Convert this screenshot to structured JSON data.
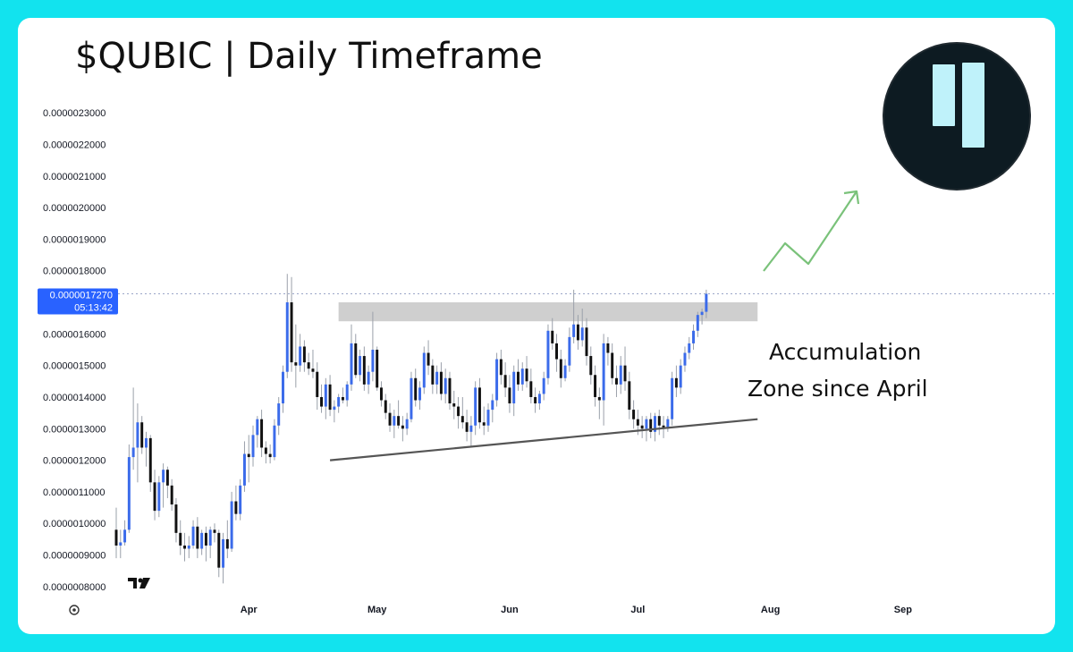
{
  "title": "$QUBIC | Daily Timeframe",
  "annotation": {
    "line1": "Accumulation",
    "line2": "Zone since April"
  },
  "price_tag": {
    "price": "0.0000017270",
    "countdown": "05:13:42"
  },
  "watermark": "TV",
  "settings_icon": "gear-icon",
  "logo_icon": "qubic-logo",
  "colors": {
    "page_bg": "#12e3ee",
    "card_bg": "#ffffff",
    "up": "#3b6bea",
    "down": "#111111",
    "wick": "#9aa0aa",
    "resistance_zone": "#cfcfcf",
    "support_line": "#555555",
    "arrow": "#7ac27a",
    "price_tag": "#2962ff",
    "logo_bg": "#0d1b22",
    "logo_bars": "#bff2fa"
  },
  "chart_data": {
    "type": "candlestick",
    "title": "$QUBIC | Daily Timeframe",
    "y_ticks": [
      "0.0000023000",
      "0.0000022000",
      "0.0000021000",
      "0.0000020000",
      "0.0000019000",
      "0.0000018000",
      "0.0000017000",
      "0.0000016000",
      "0.0000015000",
      "0.0000014000",
      "0.0000013000",
      "0.0000012000",
      "0.0000011000",
      "0.0000010000",
      "0.0000009000",
      "0.0000008000"
    ],
    "y_range": [
      7.6e-07,
      2.34e-06
    ],
    "x_labels": [
      "Apr",
      "May",
      "Jun",
      "Jul",
      "Aug",
      "Sep"
    ],
    "x_label_dates": [
      "2024-04-01",
      "2024-05-01",
      "2024-06-01",
      "2024-07-01",
      "2024-08-01",
      "2024-09-01"
    ],
    "x_range": [
      "2024-03-01",
      "2024-09-14"
    ],
    "last_price": 1.727e-06,
    "resistance_zone": {
      "low": 1.64e-06,
      "high": 1.7e-06,
      "from": "2024-04-22",
      "to": "2024-07-29"
    },
    "support_line": {
      "from_date": "2024-04-20",
      "from_value": 1.2e-06,
      "to_date": "2024-07-29",
      "to_value": 1.33e-06
    },
    "candles": [
      [
        "2024-03-01",
        9.8e-07,
        1.05e-06,
        8.9e-07,
        9.3e-07
      ],
      [
        "2024-03-02",
        9.3e-07,
        9.8e-07,
        8.9e-07,
        9.4e-07
      ],
      [
        "2024-03-03",
        9.4e-07,
        1.01e-06,
        9.3e-07,
        9.8e-07
      ],
      [
        "2024-03-04",
        9.8e-07,
        1.25e-06,
        9.7e-07,
        1.21e-06
      ],
      [
        "2024-03-05",
        1.21e-06,
        1.43e-06,
        1.17e-06,
        1.24e-06
      ],
      [
        "2024-03-06",
        1.24e-06,
        1.38e-06,
        1.13e-06,
        1.32e-06
      ],
      [
        "2024-03-07",
        1.32e-06,
        1.34e-06,
        1.22e-06,
        1.24e-06
      ],
      [
        "2024-03-08",
        1.24e-06,
        1.29e-06,
        1.18e-06,
        1.27e-06
      ],
      [
        "2024-03-09",
        1.27e-06,
        1.28e-06,
        1.1e-06,
        1.13e-06
      ],
      [
        "2024-03-10",
        1.13e-06,
        1.17e-06,
        1.01e-06,
        1.04e-06
      ],
      [
        "2024-03-11",
        1.04e-06,
        1.15e-06,
        1.02e-06,
        1.13e-06
      ],
      [
        "2024-03-12",
        1.13e-06,
        1.19e-06,
        1.05e-06,
        1.17e-06
      ],
      [
        "2024-03-13",
        1.17e-06,
        1.18e-06,
        1.08e-06,
        1.12e-06
      ],
      [
        "2024-03-14",
        1.12e-06,
        1.14e-06,
        1.04e-06,
        1.06e-06
      ],
      [
        "2024-03-15",
        1.06e-06,
        1.08e-06,
        9.4e-07,
        9.7e-07
      ],
      [
        "2024-03-16",
        9.7e-07,
        1.01e-06,
        9e-07,
        9.3e-07
      ],
      [
        "2024-03-17",
        9.3e-07,
        9.7e-07,
        8.8e-07,
        9.2e-07
      ],
      [
        "2024-03-18",
        9.2e-07,
        9.6e-07,
        8.9e-07,
        9.3e-07
      ],
      [
        "2024-03-19",
        9.3e-07,
        1.01e-06,
        9.2e-07,
        9.9e-07
      ],
      [
        "2024-03-20",
        9.9e-07,
        1.02e-06,
        8.9e-07,
        9.2e-07
      ],
      [
        "2024-03-21",
        9.2e-07,
        9.8e-07,
        9e-07,
        9.7e-07
      ],
      [
        "2024-03-22",
        9.7e-07,
        9.9e-07,
        8.8e-07,
        9.3e-07
      ],
      [
        "2024-03-23",
        9.3e-07,
        9.9e-07,
        8.9e-07,
        9.8e-07
      ],
      [
        "2024-03-24",
        9.8e-07,
        1e-06,
        9.4e-07,
        9.7e-07
      ],
      [
        "2024-03-25",
        9.7e-07,
        9.8e-07,
        8.3e-07,
        8.6e-07
      ],
      [
        "2024-03-26",
        8.6e-07,
        9.7e-07,
        8.1e-07,
        9.5e-07
      ],
      [
        "2024-03-27",
        9.5e-07,
        1.01e-06,
        8.9e-07,
        9.2e-07
      ],
      [
        "2024-03-28",
        9.2e-07,
        1.1e-06,
        9.1e-07,
        1.07e-06
      ],
      [
        "2024-03-29",
        1.07e-06,
        1.12e-06,
        1.01e-06,
        1.03e-06
      ],
      [
        "2024-03-30",
        1.03e-06,
        1.14e-06,
        1.01e-06,
        1.12e-06
      ],
      [
        "2024-03-31",
        1.12e-06,
        1.26e-06,
        1.1e-06,
        1.22e-06
      ],
      [
        "2024-04-01",
        1.22e-06,
        1.28e-06,
        1.13e-06,
        1.21e-06
      ],
      [
        "2024-04-02",
        1.21e-06,
        1.31e-06,
        1.18e-06,
        1.28e-06
      ],
      [
        "2024-04-03",
        1.28e-06,
        1.34e-06,
        1.24e-06,
        1.33e-06
      ],
      [
        "2024-04-04",
        1.33e-06,
        1.36e-06,
        1.21e-06,
        1.24e-06
      ],
      [
        "2024-04-05",
        1.24e-06,
        1.26e-06,
        1.19e-06,
        1.22e-06
      ],
      [
        "2024-04-06",
        1.22e-06,
        1.25e-06,
        1.19e-06,
        1.21e-06
      ],
      [
        "2024-04-07",
        1.21e-06,
        1.33e-06,
        1.2e-06,
        1.31e-06
      ],
      [
        "2024-04-08",
        1.31e-06,
        1.4e-06,
        1.28e-06,
        1.38e-06
      ],
      [
        "2024-04-09",
        1.38e-06,
        1.5e-06,
        1.35e-06,
        1.48e-06
      ],
      [
        "2024-04-10",
        1.48e-06,
        1.79e-06,
        1.46e-06,
        1.7e-06
      ],
      [
        "2024-04-11",
        1.7e-06,
        1.78e-06,
        1.48e-06,
        1.51e-06
      ],
      [
        "2024-04-12",
        1.51e-06,
        1.63e-06,
        1.43e-06,
        1.5e-06
      ],
      [
        "2024-04-13",
        1.5e-06,
        1.6e-06,
        1.48e-06,
        1.56e-06
      ],
      [
        "2024-04-14",
        1.56e-06,
        1.58e-06,
        1.48e-06,
        1.51e-06
      ],
      [
        "2024-04-15",
        1.51e-06,
        1.54e-06,
        1.47e-06,
        1.49e-06
      ],
      [
        "2024-04-16",
        1.49e-06,
        1.55e-06,
        1.46e-06,
        1.48e-06
      ],
      [
        "2024-04-17",
        1.48e-06,
        1.51e-06,
        1.36e-06,
        1.4e-06
      ],
      [
        "2024-04-18",
        1.4e-06,
        1.44e-06,
        1.35e-06,
        1.37e-06
      ],
      [
        "2024-04-19",
        1.37e-06,
        1.46e-06,
        1.33e-06,
        1.44e-06
      ],
      [
        "2024-04-20",
        1.44e-06,
        1.47e-06,
        1.34e-06,
        1.36e-06
      ],
      [
        "2024-04-21",
        1.36e-06,
        1.39e-06,
        1.32e-06,
        1.37e-06
      ],
      [
        "2024-04-22",
        1.37e-06,
        1.41e-06,
        1.35e-06,
        1.4e-06
      ],
      [
        "2024-04-23",
        1.4e-06,
        1.43e-06,
        1.38e-06,
        1.39e-06
      ],
      [
        "2024-04-24",
        1.39e-06,
        1.45e-06,
        1.37e-06,
        1.44e-06
      ],
      [
        "2024-04-25",
        1.44e-06,
        1.63e-06,
        1.42e-06,
        1.57e-06
      ],
      [
        "2024-04-26",
        1.57e-06,
        1.6e-06,
        1.46e-06,
        1.47e-06
      ],
      [
        "2024-04-27",
        1.47e-06,
        1.55e-06,
        1.45e-06,
        1.53e-06
      ],
      [
        "2024-04-28",
        1.53e-06,
        1.56e-06,
        1.42e-06,
        1.44e-06
      ],
      [
        "2024-04-29",
        1.44e-06,
        1.5e-06,
        1.41e-06,
        1.48e-06
      ],
      [
        "2024-04-30",
        1.48e-06,
        1.67e-06,
        1.45e-06,
        1.55e-06
      ],
      [
        "2024-05-01",
        1.55e-06,
        1.56e-06,
        1.42e-06,
        1.43e-06
      ],
      [
        "2024-05-02",
        1.43e-06,
        1.45e-06,
        1.37e-06,
        1.39e-06
      ],
      [
        "2024-05-03",
        1.39e-06,
        1.41e-06,
        1.33e-06,
        1.35e-06
      ],
      [
        "2024-05-04",
        1.35e-06,
        1.38e-06,
        1.29e-06,
        1.31e-06
      ],
      [
        "2024-05-05",
        1.31e-06,
        1.36e-06,
        1.27e-06,
        1.34e-06
      ],
      [
        "2024-05-06",
        1.34e-06,
        1.39e-06,
        1.3e-06,
        1.31e-06
      ],
      [
        "2024-05-07",
        1.31e-06,
        1.34e-06,
        1.26e-06,
        1.3e-06
      ],
      [
        "2024-05-08",
        1.3e-06,
        1.35e-06,
        1.28e-06,
        1.33e-06
      ],
      [
        "2024-05-09",
        1.33e-06,
        1.48e-06,
        1.32e-06,
        1.46e-06
      ],
      [
        "2024-05-10",
        1.46e-06,
        1.49e-06,
        1.37e-06,
        1.39e-06
      ],
      [
        "2024-05-11",
        1.39e-06,
        1.45e-06,
        1.36e-06,
        1.43e-06
      ],
      [
        "2024-05-12",
        1.43e-06,
        1.56e-06,
        1.41e-06,
        1.54e-06
      ],
      [
        "2024-05-13",
        1.54e-06,
        1.58e-06,
        1.47e-06,
        1.5e-06
      ],
      [
        "2024-05-14",
        1.5e-06,
        1.52e-06,
        1.41e-06,
        1.44e-06
      ],
      [
        "2024-05-15",
        1.44e-06,
        1.5e-06,
        1.41e-06,
        1.48e-06
      ],
      [
        "2024-05-16",
        1.48e-06,
        1.51e-06,
        1.39e-06,
        1.41e-06
      ],
      [
        "2024-05-17",
        1.41e-06,
        1.49e-06,
        1.38e-06,
        1.46e-06
      ],
      [
        "2024-05-18",
        1.46e-06,
        1.48e-06,
        1.36e-06,
        1.38e-06
      ],
      [
        "2024-05-19",
        1.38e-06,
        1.42e-06,
        1.33e-06,
        1.37e-06
      ],
      [
        "2024-05-20",
        1.37e-06,
        1.4e-06,
        1.3e-06,
        1.34e-06
      ],
      [
        "2024-05-21",
        1.34e-06,
        1.4e-06,
        1.3e-06,
        1.32e-06
      ],
      [
        "2024-05-22",
        1.32e-06,
        1.36e-06,
        1.26e-06,
        1.29e-06
      ],
      [
        "2024-05-23",
        1.29e-06,
        1.34e-06,
        1.24e-06,
        1.31e-06
      ],
      [
        "2024-05-24",
        1.31e-06,
        1.45e-06,
        1.28e-06,
        1.43e-06
      ],
      [
        "2024-05-25",
        1.43e-06,
        1.46e-06,
        1.3e-06,
        1.32e-06
      ],
      [
        "2024-05-26",
        1.32e-06,
        1.37e-06,
        1.28e-06,
        1.31e-06
      ],
      [
        "2024-05-27",
        1.31e-06,
        1.38e-06,
        1.29e-06,
        1.36e-06
      ],
      [
        "2024-05-28",
        1.36e-06,
        1.41e-06,
        1.32e-06,
        1.39e-06
      ],
      [
        "2024-05-29",
        1.39e-06,
        1.54e-06,
        1.37e-06,
        1.52e-06
      ],
      [
        "2024-05-30",
        1.52e-06,
        1.55e-06,
        1.44e-06,
        1.47e-06
      ],
      [
        "2024-05-31",
        1.47e-06,
        1.51e-06,
        1.4e-06,
        1.43e-06
      ],
      [
        "2024-06-01",
        1.43e-06,
        1.47e-06,
        1.35e-06,
        1.38e-06
      ],
      [
        "2024-06-02",
        1.38e-06,
        1.5e-06,
        1.34e-06,
        1.48e-06
      ],
      [
        "2024-06-03",
        1.48e-06,
        1.52e-06,
        1.42e-06,
        1.44e-06
      ],
      [
        "2024-06-04",
        1.44e-06,
        1.51e-06,
        1.42e-06,
        1.49e-06
      ],
      [
        "2024-06-05",
        1.49e-06,
        1.53e-06,
        1.43e-06,
        1.45e-06
      ],
      [
        "2024-06-06",
        1.45e-06,
        1.49e-06,
        1.38e-06,
        1.4e-06
      ],
      [
        "2024-06-07",
        1.4e-06,
        1.43e-06,
        1.35e-06,
        1.38e-06
      ],
      [
        "2024-06-08",
        1.38e-06,
        1.42e-06,
        1.36e-06,
        1.41e-06
      ],
      [
        "2024-06-09",
        1.41e-06,
        1.48e-06,
        1.39e-06,
        1.46e-06
      ],
      [
        "2024-06-10",
        1.46e-06,
        1.63e-06,
        1.44e-06,
        1.61e-06
      ],
      [
        "2024-06-11",
        1.61e-06,
        1.65e-06,
        1.55e-06,
        1.57e-06
      ],
      [
        "2024-06-12",
        1.57e-06,
        1.6e-06,
        1.48e-06,
        1.52e-06
      ],
      [
        "2024-06-13",
        1.52e-06,
        1.55e-06,
        1.43e-06,
        1.46e-06
      ],
      [
        "2024-06-14",
        1.46e-06,
        1.52e-06,
        1.45e-06,
        1.5e-06
      ],
      [
        "2024-06-15",
        1.5e-06,
        1.62e-06,
        1.48e-06,
        1.59e-06
      ],
      [
        "2024-06-16",
        1.59e-06,
        1.74e-06,
        1.57e-06,
        1.63e-06
      ],
      [
        "2024-06-17",
        1.63e-06,
        1.66e-06,
        1.55e-06,
        1.58e-06
      ],
      [
        "2024-06-18",
        1.58e-06,
        1.68e-06,
        1.56e-06,
        1.62e-06
      ],
      [
        "2024-06-19",
        1.62e-06,
        1.65e-06,
        1.5e-06,
        1.53e-06
      ],
      [
        "2024-06-20",
        1.53e-06,
        1.56e-06,
        1.44e-06,
        1.47e-06
      ],
      [
        "2024-06-21",
        1.47e-06,
        1.5e-06,
        1.37e-06,
        1.4e-06
      ],
      [
        "2024-06-22",
        1.4e-06,
        1.43e-06,
        1.33e-06,
        1.39e-06
      ],
      [
        "2024-06-23",
        1.39e-06,
        1.6e-06,
        1.31e-06,
        1.57e-06
      ],
      [
        "2024-06-24",
        1.57e-06,
        1.59e-06,
        1.5e-06,
        1.54e-06
      ],
      [
        "2024-06-25",
        1.54e-06,
        1.57e-06,
        1.44e-06,
        1.46e-06
      ],
      [
        "2024-06-26",
        1.46e-06,
        1.5e-06,
        1.4e-06,
        1.44e-06
      ],
      [
        "2024-06-27",
        1.44e-06,
        1.53e-06,
        1.41e-06,
        1.5e-06
      ],
      [
        "2024-06-28",
        1.5e-06,
        1.56e-06,
        1.42e-06,
        1.45e-06
      ],
      [
        "2024-06-29",
        1.45e-06,
        1.48e-06,
        1.33e-06,
        1.36e-06
      ],
      [
        "2024-06-30",
        1.36e-06,
        1.39e-06,
        1.3e-06,
        1.33e-06
      ],
      [
        "2024-07-01",
        1.33e-06,
        1.36e-06,
        1.28e-06,
        1.31e-06
      ],
      [
        "2024-07-02",
        1.31e-06,
        1.34e-06,
        1.27e-06,
        1.3e-06
      ],
      [
        "2024-07-03",
        1.3e-06,
        1.34e-06,
        1.26e-06,
        1.33e-06
      ],
      [
        "2024-07-04",
        1.33e-06,
        1.35e-06,
        1.27e-06,
        1.29e-06
      ],
      [
        "2024-07-05",
        1.29e-06,
        1.35e-06,
        1.26e-06,
        1.34e-06
      ],
      [
        "2024-07-06",
        1.34e-06,
        1.36e-06,
        1.28e-06,
        1.31e-06
      ],
      [
        "2024-07-07",
        1.31e-06,
        1.34e-06,
        1.27e-06,
        1.3e-06
      ],
      [
        "2024-07-08",
        1.3e-06,
        1.34e-06,
        1.29e-06,
        1.33e-06
      ],
      [
        "2024-07-09",
        1.33e-06,
        1.48e-06,
        1.31e-06,
        1.46e-06
      ],
      [
        "2024-07-10",
        1.46e-06,
        1.5e-06,
        1.4e-06,
        1.43e-06
      ],
      [
        "2024-07-11",
        1.43e-06,
        1.52e-06,
        1.41e-06,
        1.5e-06
      ],
      [
        "2024-07-12",
        1.5e-06,
        1.56e-06,
        1.48e-06,
        1.54e-06
      ],
      [
        "2024-07-13",
        1.54e-06,
        1.59e-06,
        1.52e-06,
        1.57e-06
      ],
      [
        "2024-07-14",
        1.57e-06,
        1.63e-06,
        1.55e-06,
        1.61e-06
      ],
      [
        "2024-07-15",
        1.61e-06,
        1.67e-06,
        1.59e-06,
        1.66e-06
      ],
      [
        "2024-07-16",
        1.66e-06,
        1.68e-06,
        1.63e-06,
        1.67e-06
      ],
      [
        "2024-07-17",
        1.67e-06,
        1.74e-06,
        1.65e-06,
        1.727e-06
      ]
    ]
  }
}
